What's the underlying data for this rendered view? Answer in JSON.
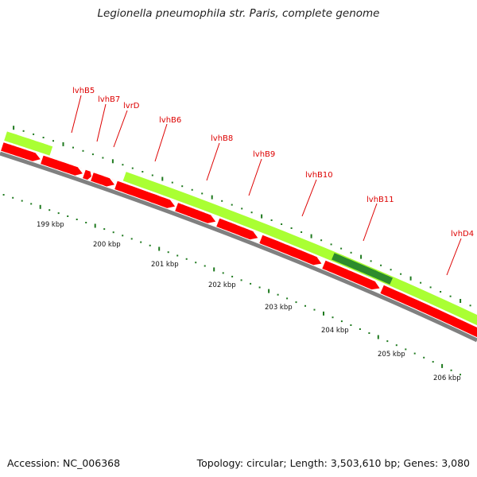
{
  "title": "Legionella pneumophila str. Paris, complete genome",
  "footer": {
    "accession": "Accession: NC_006368",
    "summary": "Topology: circular; Length: 3,503,610 bp; Genes: 3,080"
  },
  "colors": {
    "gene_red": "#ff0000",
    "gene_green": "#aaff33",
    "gene_dark_green": "#2d8b2d",
    "label_red": "#dd0000",
    "tick_green": "#1f7a1f",
    "backbone_gray": "#808080"
  },
  "scale_labels": [
    "199 kbp",
    "200 kbp",
    "201 kbp",
    "202 kbp",
    "203 kbp",
    "204 kbp",
    "205 kbp",
    "206 kbp"
  ],
  "gene_labels": [
    "lvhB5",
    "lvhB7",
    "lvrD",
    "lvhB6",
    "lvhB8",
    "lvhB9",
    "lvhB10",
    "lvhB11",
    "lvhD4"
  ]
}
